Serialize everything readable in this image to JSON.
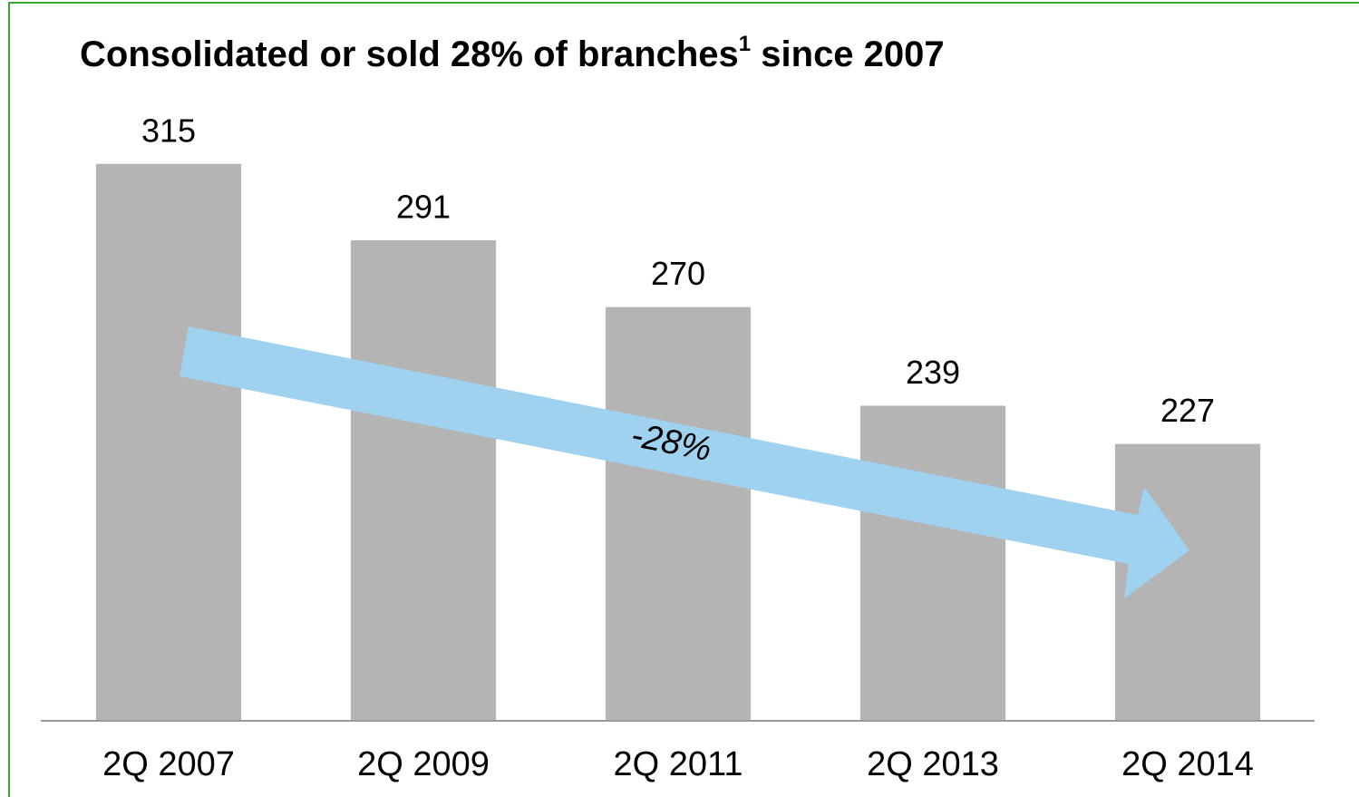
{
  "chart_data": {
    "type": "bar",
    "title": [
      "Consolidated or sold 28% of branches",
      "1",
      " since 2007"
    ],
    "categories": [
      "2Q 2007",
      "2Q 2009",
      "2Q 2011",
      "2Q 2013",
      "2Q 2014"
    ],
    "values": [
      315,
      291,
      270,
      239,
      227
    ],
    "color": "#b4b4b4",
    "ylim": [
      140,
      340
    ],
    "annotation": "-28%"
  }
}
